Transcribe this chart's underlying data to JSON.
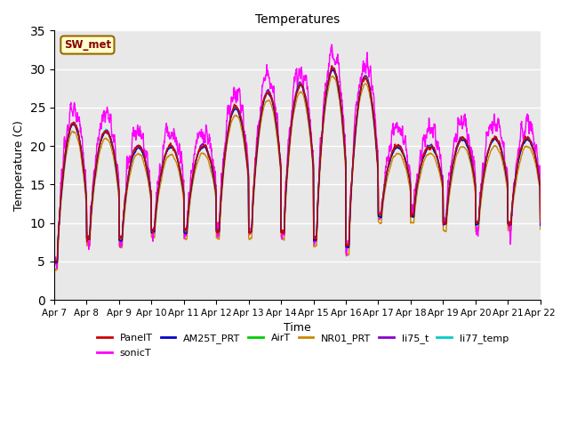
{
  "title": "Temperatures",
  "xlabel": "Time",
  "ylabel": "Temperature (C)",
  "ylim": [
    0,
    35
  ],
  "yticks": [
    0,
    5,
    10,
    15,
    20,
    25,
    30,
    35
  ],
  "xlim": [
    0,
    15
  ],
  "plot_bg": "#e8e8e8",
  "annotation_text": "SW_met",
  "annotation_bg": "#ffffcc",
  "annotation_border": "#996600",
  "series_colors": {
    "PanelT": "#cc0000",
    "AM25T_PRT": "#0000cc",
    "AirT": "#00cc00",
    "NR01_PRT": "#cc8800",
    "li75_t": "#8800cc",
    "li77_temp": "#00cccc",
    "sonicT": "#ff00ff"
  },
  "xtick_labels": [
    "Apr 7",
    "Apr 8",
    "Apr 9",
    "Apr 10",
    "Apr 11",
    "Apr 12",
    "Apr 13",
    "Apr 14",
    "Apr 15",
    "Apr 16",
    "Apr 17",
    "Apr 18",
    "Apr 19",
    "Apr 20",
    "Apr 21",
    "Apr 22"
  ],
  "xtick_positions": [
    0,
    1,
    2,
    3,
    4,
    5,
    6,
    7,
    8,
    9,
    10,
    11,
    12,
    13,
    14,
    15
  ],
  "day_amps": [
    18,
    14,
    12,
    11,
    11,
    16,
    18,
    19,
    22,
    22,
    9,
    9,
    11,
    11,
    11
  ],
  "day_mins": [
    5,
    8,
    8,
    9,
    9,
    9,
    9,
    9,
    8,
    7,
    11,
    11,
    10,
    10,
    10
  ],
  "nr_mins": [
    4,
    7,
    7,
    8,
    8,
    8,
    8,
    8,
    7,
    6,
    10,
    10,
    9,
    9,
    9
  ],
  "sonic_amps": [
    20,
    16,
    14,
    13,
    13,
    18,
    20,
    21,
    24,
    24,
    11,
    11,
    13,
    13,
    13
  ]
}
